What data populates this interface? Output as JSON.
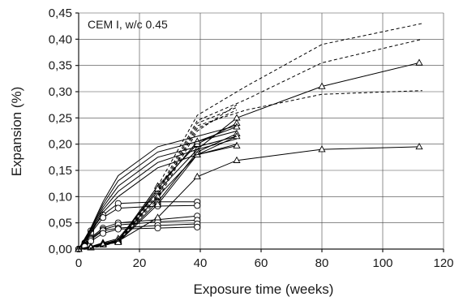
{
  "chart_data": {
    "type": "line",
    "title": "",
    "annotation": "CEM I, w/c 0.45",
    "xlabel": "Exposure time (weeks)",
    "ylabel": "Expansion (%)",
    "xlim": [
      0,
      120
    ],
    "ylim": [
      0,
      0.45
    ],
    "xticks": [
      0,
      20,
      40,
      60,
      80,
      100,
      120
    ],
    "yticks": [
      0,
      0.05,
      0.1,
      0.15,
      0.2,
      0.25,
      0.3,
      0.35,
      0.4,
      0.45
    ],
    "xtick_labels": [
      "0",
      "20",
      "40",
      "60",
      "80",
      "100",
      "120"
    ],
    "ytick_labels": [
      "0,00",
      "0,05",
      "0,10",
      "0,15",
      "0,20",
      "0,25",
      "0,30",
      "0,35",
      "0,40",
      "0,45"
    ],
    "grid": true,
    "legend": "none",
    "series": [
      {
        "style": "solid",
        "marker": "circle",
        "points": [
          [
            0,
            0
          ],
          [
            2,
            0.012
          ],
          [
            4,
            0.035
          ],
          [
            8,
            0.065
          ],
          [
            13,
            0.087
          ],
          [
            26,
            0.09
          ],
          [
            39,
            0.09
          ]
        ]
      },
      {
        "style": "solid",
        "marker": "circle",
        "points": [
          [
            0,
            0
          ],
          [
            2,
            0.01
          ],
          [
            4,
            0.03
          ],
          [
            8,
            0.06
          ],
          [
            13,
            0.078
          ],
          [
            26,
            0.082
          ],
          [
            39,
            0.083
          ]
        ]
      },
      {
        "style": "solid",
        "marker": "circle",
        "points": [
          [
            0,
            0
          ],
          [
            2,
            0.008
          ],
          [
            4,
            0.022
          ],
          [
            8,
            0.04
          ],
          [
            13,
            0.05
          ],
          [
            26,
            0.056
          ],
          [
            39,
            0.063
          ]
        ]
      },
      {
        "style": "solid",
        "marker": "circle",
        "points": [
          [
            0,
            0
          ],
          [
            2,
            0.007
          ],
          [
            4,
            0.02
          ],
          [
            8,
            0.037
          ],
          [
            13,
            0.046
          ],
          [
            26,
            0.052
          ],
          [
            39,
            0.055
          ]
        ]
      },
      {
        "style": "solid",
        "marker": "circle",
        "points": [
          [
            0,
            0
          ],
          [
            2,
            0.006
          ],
          [
            4,
            0.018
          ],
          [
            8,
            0.035
          ],
          [
            13,
            0.04
          ],
          [
            26,
            0.045
          ],
          [
            39,
            0.048
          ]
        ]
      },
      {
        "style": "solid",
        "marker": "circle",
        "points": [
          [
            0,
            0
          ],
          [
            2,
            0.005
          ],
          [
            4,
            0.015
          ],
          [
            8,
            0.03
          ],
          [
            13,
            0.038
          ],
          [
            26,
            0.04
          ],
          [
            39,
            0.042
          ]
        ]
      },
      {
        "style": "solid",
        "marker": "triangle",
        "points": [
          [
            0,
            0
          ],
          [
            4,
            0.003
          ],
          [
            8,
            0.008
          ],
          [
            13,
            0.015
          ],
          [
            26,
            0.06
          ],
          [
            39,
            0.138
          ],
          [
            52,
            0.169
          ],
          [
            80,
            0.19
          ],
          [
            112,
            0.195
          ]
        ]
      },
      {
        "style": "solid",
        "marker": "triangle",
        "points": [
          [
            0,
            0
          ],
          [
            4,
            0.004
          ],
          [
            8,
            0.01
          ],
          [
            13,
            0.018
          ],
          [
            26,
            0.1
          ],
          [
            39,
            0.18
          ],
          [
            52,
            0.197
          ]
        ]
      },
      {
        "style": "solid",
        "marker": "triangle",
        "points": [
          [
            0,
            0
          ],
          [
            4,
            0.005
          ],
          [
            8,
            0.012
          ],
          [
            13,
            0.02
          ],
          [
            26,
            0.11
          ],
          [
            39,
            0.19
          ],
          [
            52,
            0.25
          ],
          [
            80,
            0.31
          ],
          [
            112,
            0.355
          ]
        ]
      },
      {
        "style": "solid",
        "marker": "triangle",
        "points": [
          [
            0,
            0
          ],
          [
            4,
            0.004
          ],
          [
            8,
            0.011
          ],
          [
            13,
            0.016
          ],
          [
            26,
            0.12
          ],
          [
            39,
            0.2
          ],
          [
            52,
            0.24
          ]
        ]
      },
      {
        "style": "solid",
        "marker": "triangle",
        "points": [
          [
            0,
            0
          ],
          [
            4,
            0.004
          ],
          [
            8,
            0.01
          ],
          [
            13,
            0.015
          ],
          [
            26,
            0.115
          ],
          [
            39,
            0.205
          ],
          [
            52,
            0.233
          ]
        ]
      },
      {
        "style": "solid",
        "marker": "triangle",
        "points": [
          [
            0,
            0
          ],
          [
            4,
            0.003
          ],
          [
            8,
            0.009
          ],
          [
            13,
            0.014
          ],
          [
            26,
            0.09
          ],
          [
            39,
            0.185
          ],
          [
            52,
            0.22
          ]
        ]
      },
      {
        "style": "solid",
        "marker": "triangle",
        "points": [
          [
            0,
            0
          ],
          [
            4,
            0.003
          ],
          [
            8,
            0.008
          ],
          [
            13,
            0.013
          ],
          [
            26,
            0.085
          ],
          [
            39,
            0.18
          ],
          [
            52,
            0.215
          ]
        ]
      },
      {
        "style": "solid",
        "marker": "none",
        "points": [
          [
            0,
            0
          ],
          [
            4,
            0.04
          ],
          [
            8,
            0.09
          ],
          [
            13,
            0.14
          ],
          [
            26,
            0.195
          ],
          [
            39,
            0.215
          ],
          [
            52,
            0.235
          ]
        ]
      },
      {
        "style": "solid",
        "marker": "none",
        "points": [
          [
            0,
            0
          ],
          [
            4,
            0.038
          ],
          [
            8,
            0.085
          ],
          [
            13,
            0.13
          ],
          [
            26,
            0.185
          ],
          [
            39,
            0.205
          ],
          [
            52,
            0.225
          ]
        ]
      },
      {
        "style": "solid",
        "marker": "none",
        "points": [
          [
            0,
            0
          ],
          [
            4,
            0.036
          ],
          [
            8,
            0.08
          ],
          [
            13,
            0.12
          ],
          [
            26,
            0.175
          ],
          [
            39,
            0.195
          ],
          [
            52,
            0.215
          ]
        ]
      },
      {
        "style": "solid",
        "marker": "none",
        "points": [
          [
            0,
            0
          ],
          [
            4,
            0.033
          ],
          [
            8,
            0.075
          ],
          [
            13,
            0.11
          ],
          [
            26,
            0.165
          ],
          [
            39,
            0.19
          ],
          [
            52,
            0.21
          ]
        ]
      },
      {
        "style": "solid",
        "marker": "none",
        "points": [
          [
            0,
            0
          ],
          [
            4,
            0.03
          ],
          [
            8,
            0.07
          ],
          [
            13,
            0.1
          ],
          [
            26,
            0.155
          ],
          [
            39,
            0.18
          ],
          [
            52,
            0.2
          ]
        ]
      },
      {
        "style": "dashed",
        "marker": "none",
        "points": [
          [
            0,
            0
          ],
          [
            4,
            0.002
          ],
          [
            8,
            0.006
          ],
          [
            13,
            0.015
          ],
          [
            26,
            0.12
          ],
          [
            39,
            0.255
          ],
          [
            55,
            0.31
          ],
          [
            80,
            0.39
          ],
          [
            113,
            0.43
          ]
        ]
      },
      {
        "style": "dashed",
        "marker": "none",
        "points": [
          [
            0,
            0
          ],
          [
            4,
            0.002
          ],
          [
            8,
            0.006
          ],
          [
            13,
            0.015
          ],
          [
            26,
            0.11
          ],
          [
            39,
            0.245
          ],
          [
            55,
            0.285
          ],
          [
            80,
            0.355
          ],
          [
            113,
            0.4
          ]
        ]
      },
      {
        "style": "dashed",
        "marker": "none",
        "points": [
          [
            0,
            0
          ],
          [
            4,
            0.002
          ],
          [
            8,
            0.006
          ],
          [
            13,
            0.015
          ],
          [
            26,
            0.1
          ],
          [
            39,
            0.235
          ],
          [
            55,
            0.265
          ],
          [
            80,
            0.295
          ],
          [
            113,
            0.302
          ]
        ]
      },
      {
        "style": "dashed",
        "marker": "none",
        "points": [
          [
            0,
            0
          ],
          [
            4,
            0.002
          ],
          [
            8,
            0.006
          ],
          [
            13,
            0.015
          ],
          [
            26,
            0.105
          ],
          [
            39,
            0.24
          ],
          [
            52,
            0.27
          ]
        ]
      },
      {
        "style": "dashed",
        "marker": "none",
        "points": [
          [
            0,
            0
          ],
          [
            4,
            0.002
          ],
          [
            8,
            0.006
          ],
          [
            13,
            0.015
          ],
          [
            26,
            0.1
          ],
          [
            39,
            0.23
          ],
          [
            52,
            0.265
          ]
        ]
      },
      {
        "style": "dashed",
        "marker": "none",
        "points": [
          [
            0,
            0
          ],
          [
            4,
            0.002
          ],
          [
            8,
            0.006
          ],
          [
            13,
            0.015
          ],
          [
            26,
            0.095
          ],
          [
            39,
            0.225
          ],
          [
            52,
            0.275
          ]
        ]
      }
    ]
  }
}
